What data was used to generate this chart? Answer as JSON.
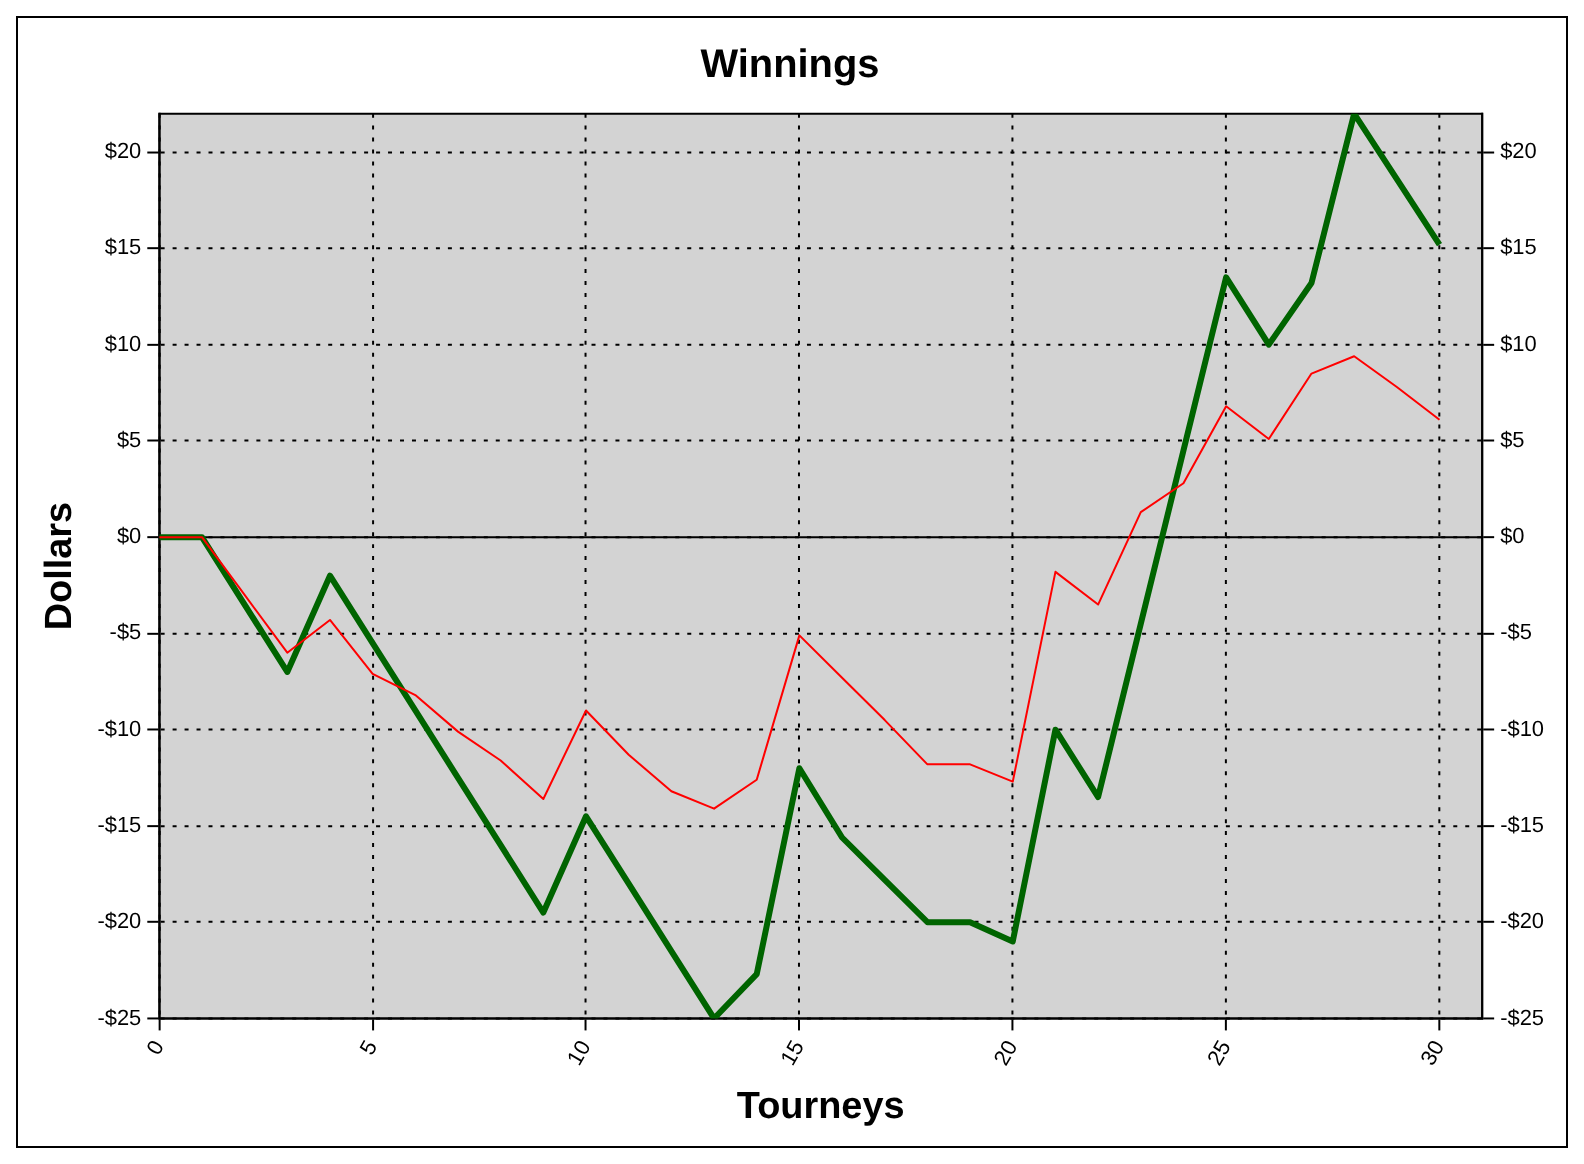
{
  "chart_data": {
    "type": "line",
    "title": "Winnings",
    "xlabel": "Tourneys",
    "ylabel": "Dollars",
    "xlim": [
      0,
      31
    ],
    "xticks": [
      0,
      5,
      10,
      15,
      20,
      25,
      30
    ],
    "ylim": [
      -25,
      22
    ],
    "yticks": [
      {
        "value": -25,
        "label": "-$25"
      },
      {
        "value": -20,
        "label": "-$20"
      },
      {
        "value": -15,
        "label": "-$15"
      },
      {
        "value": -10,
        "label": "-$10"
      },
      {
        "value": -5,
        "label": "-$5"
      },
      {
        "value": 0,
        "label": "$0"
      },
      {
        "value": 5,
        "label": "$5"
      },
      {
        "value": 10,
        "label": "$10"
      },
      {
        "value": 15,
        "label": "$15"
      },
      {
        "value": 20,
        "label": "$20"
      }
    ],
    "y2lim": [
      -25,
      22
    ],
    "y2ticks": [
      {
        "value": -25,
        "label": "-$25"
      },
      {
        "value": -20,
        "label": "-$20"
      },
      {
        "value": -15,
        "label": "-$15"
      },
      {
        "value": -10,
        "label": "-$10"
      },
      {
        "value": -5,
        "label": "-$5"
      },
      {
        "value": 0,
        "label": "$0"
      },
      {
        "value": 5,
        "label": "$5"
      },
      {
        "value": 10,
        "label": "$10"
      },
      {
        "value": 15,
        "label": "$15"
      },
      {
        "value": 20,
        "label": "$20"
      }
    ],
    "x": [
      0,
      1,
      2,
      3,
      4,
      5,
      6,
      7,
      8,
      9,
      10,
      11,
      12,
      13,
      14,
      15,
      16,
      17,
      18,
      19,
      20,
      21,
      22,
      23,
      24,
      25,
      26,
      27,
      28,
      29,
      30
    ],
    "series": [
      {
        "color": "#ff0000",
        "values": [
          0,
          0,
          -3,
          -6,
          -4.3,
          -7.1,
          -8.2,
          -10.1,
          -11.6,
          -13.6,
          -9,
          -11.3,
          -13.2,
          -14.1,
          -12.6,
          -5.1,
          -7.3,
          -9.5,
          -11.8,
          -11.8,
          -12.7,
          -1.8,
          -3.5,
          1.3,
          2.8,
          6.8,
          5.1,
          8.5,
          9.4,
          7.8,
          6.1
        ]
      },
      {
        "color": "#006400",
        "values": [
          0,
          0,
          -3.5,
          -7,
          -2,
          -5.5,
          -9,
          -12.5,
          -16,
          -19.5,
          -14.5,
          -18,
          -21.5,
          -25,
          -22.7,
          -12,
          -15.6,
          -17.8,
          -20,
          -20,
          -21,
          -10,
          -13.5,
          -4.5,
          4.5,
          13.5,
          10,
          13.2,
          22,
          18.6,
          15.2
        ]
      }
    ],
    "ref_lines": [
      {
        "axis": "y",
        "value": 0,
        "color": "#000000"
      }
    ],
    "grid": true,
    "legend": false,
    "marker": "none",
    "line_style": "solid"
  }
}
